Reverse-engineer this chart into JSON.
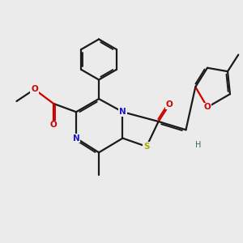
{
  "background_color": "#ebebeb",
  "bond_color": "#1a1a1a",
  "bond_width": 1.6,
  "N_color": "#1a1acc",
  "O_color": "#cc0000",
  "S_color": "#aaaa00",
  "H_color": "#336666",
  "fig_width": 3.0,
  "fig_height": 3.0,
  "dpi": 100,
  "xlim": [
    0,
    10
  ],
  "ylim": [
    0,
    10
  ]
}
